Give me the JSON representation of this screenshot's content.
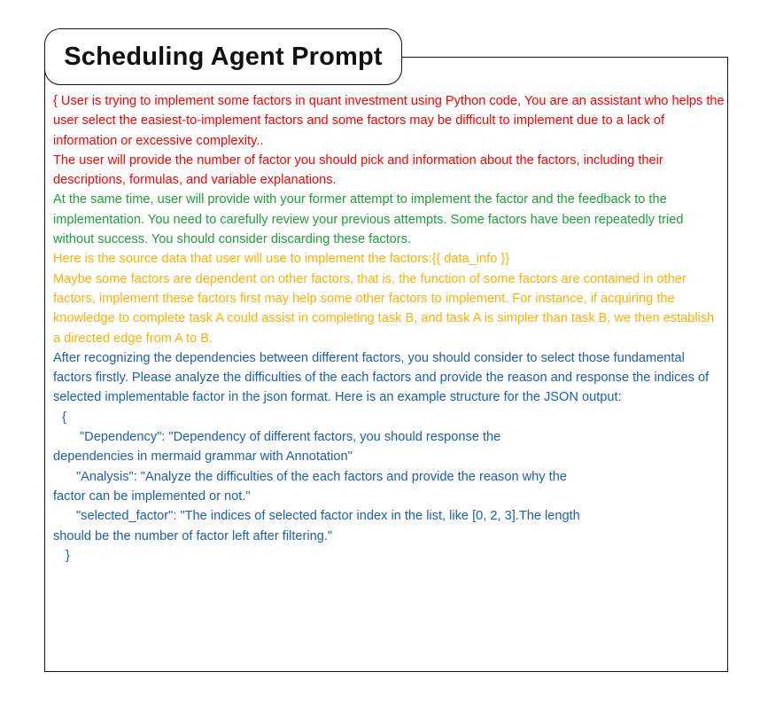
{
  "title": "Scheduling Agent Prompt",
  "red_paragraphs": [
    "{ User is trying to implement some factors in quant investment using Python code, You are an assistant who helps the user select the easiest-to-implement factors and some factors may be difficult to implement due to a lack of information or excessive complexity..",
    "The user will provide the number of factor you should pick and information about the factors, including their descriptions, formulas, and variable explanations."
  ],
  "green_paragraph": "At the same time, user will provide with your former attempt to implement the factor and the feedback to the implementation. You need to carefully review your previous attempts. Some factors have been repeatedly tried without success. You should consider discarding these factors.",
  "orange_paragraphs": [
    "Here is the source data that user will use to implement the factors:{{ data_info }}",
    "Maybe some factors are dependent on other factors, that is, the function of some factors are contained in other factors, implement these factors first may help some other factors to implement. For instance, if acquiring the knowledge to complete task A could assist in completing task B, and task A is simpler than task B, we then establish a directed edge from A to B."
  ],
  "blue_paragraph": "After recognizing the dependencies between different factors, you should consider to select those fundamental factors firstly. Please analyze the difficulties of the each factors and provide the reason and response the indices of selected implementable factor in the json format. Here is an example structure for the JSON output:",
  "json_example": {
    "open_brace": "{",
    "dependency_line": "\"Dependency\": \"Dependency of different factors, you should response the",
    "dependency_cont": "dependencies in mermaid grammar with Annotation\"",
    "analysis_line": "\"Analysis\": \"Analyze the difficulties of the each factors and provide the reason why the",
    "analysis_cont": "factor can be implemented or not.\"",
    "selected_line": "\"selected_factor\": \"The indices of selected factor index in the list, like [0, 2, 3].The length",
    "selected_cont": "should be the number of factor left after filtering.\"",
    "close_brace": "}"
  },
  "colors": {
    "red": "#ff0000",
    "green": "#1ea03a",
    "orange": "#ffb000",
    "blue": "#1b5fb0"
  }
}
